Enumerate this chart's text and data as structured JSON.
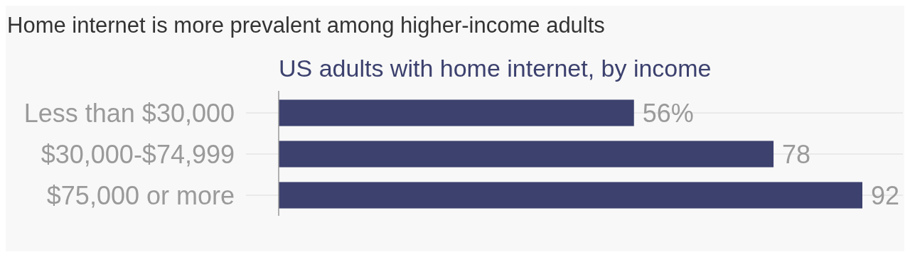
{
  "chart_data": {
    "type": "bar",
    "orientation": "horizontal",
    "title": "Home internet is more prevalent among higher-income adults",
    "subtitle": "US adults with home internet, by income",
    "categories": [
      "Less than $30,000",
      "$30,000-$74,999",
      "$75,000 or more"
    ],
    "values": [
      56,
      78,
      92
    ],
    "value_labels": [
      "56%",
      "78",
      "92"
    ],
    "color": "#3c416e",
    "grid": "y"
  }
}
